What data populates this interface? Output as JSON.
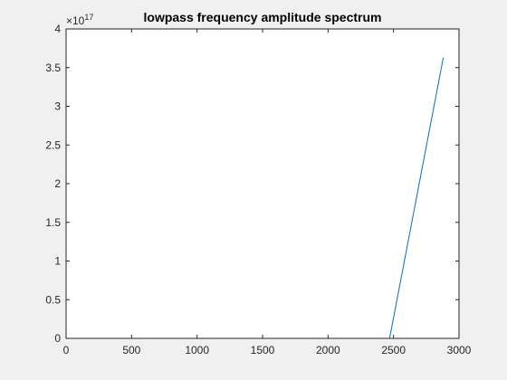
{
  "chart_data": {
    "type": "line",
    "title": "lowpass frequency amplitude spectrum",
    "xlabel": "",
    "ylabel": "",
    "xlim": [
      0,
      3000
    ],
    "ylim": [
      0,
      4
    ],
    "y_exponent_prefix": "×10",
    "y_exponent_power": "17",
    "x_ticks": [
      0,
      500,
      1000,
      1500,
      2000,
      2500,
      3000
    ],
    "x_tick_labels": [
      "0",
      "500",
      "1000",
      "1500",
      "2000",
      "2500",
      "3000"
    ],
    "y_ticks": [
      0,
      0.5,
      1,
      1.5,
      2,
      2.5,
      3,
      3.5,
      4
    ],
    "y_tick_labels": [
      "0",
      "0.5",
      "1",
      "1.5",
      "2",
      "2.5",
      "3",
      "3.5",
      "4"
    ],
    "grid": false,
    "series": [
      {
        "color": "#0072bd",
        "x": [
          0,
          2470,
          2880
        ],
        "y": [
          0,
          0,
          3.63
        ]
      }
    ]
  },
  "colors": {
    "figure_background": "#f0f0f0",
    "axes_background": "#ffffff",
    "axes_color": "#262626"
  }
}
